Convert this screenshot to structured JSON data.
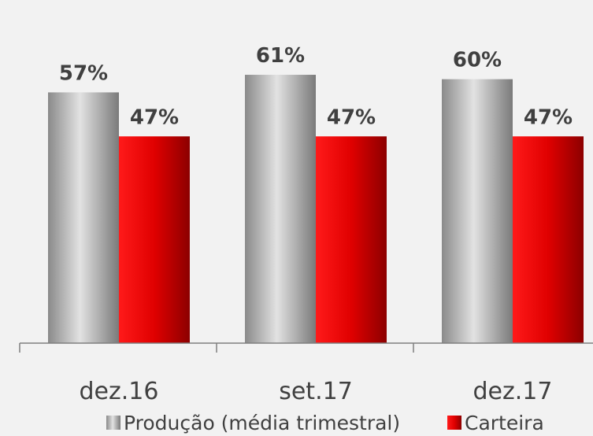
{
  "chart_data": {
    "type": "bar",
    "categories": [
      "dez.16",
      "set.17",
      "dez.17"
    ],
    "series": [
      {
        "name": "Produção (média trimestral)",
        "values": [
          57,
          61,
          60
        ],
        "labels": [
          "57%",
          "61%",
          "60%"
        ],
        "color": "#a6a6a6"
      },
      {
        "name": "Carteira",
        "values": [
          47,
          47,
          47
        ],
        "labels": [
          "47%",
          "47%",
          "47%"
        ],
        "color": "#e00000"
      }
    ],
    "ylim": [
      0,
      78
    ],
    "grid": false,
    "legend": "bottom"
  }
}
